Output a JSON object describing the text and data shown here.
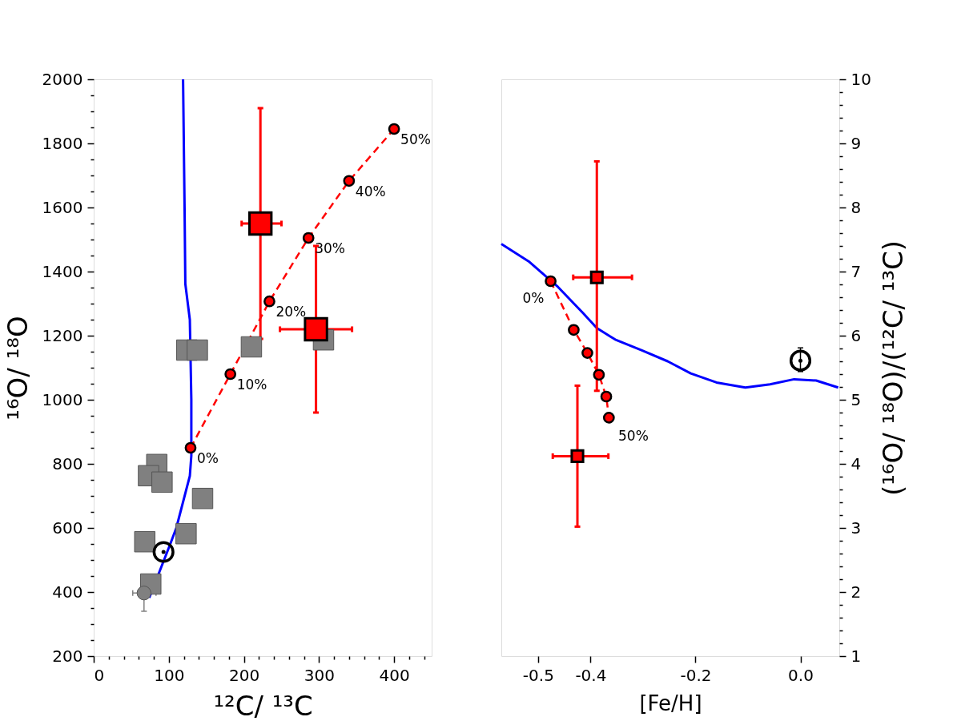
{
  "chart_data": [
    {
      "type": "scatter",
      "xlabel": "¹²C/ ¹³C",
      "ylabel": "¹⁶O/ ¹⁸O",
      "xlim": [
        0,
        450
      ],
      "ylim": [
        200,
        2000
      ],
      "grid": false,
      "xticks": [
        0,
        {
          "value": 20,
          "label": null
        },
        {
          "value": 40,
          "label": null
        },
        {
          "value": 60,
          "label": null
        },
        {
          "value": 80,
          "label": null
        },
        100,
        {
          "value": 120,
          "label": null
        },
        {
          "value": 140,
          "label": null
        },
        {
          "value": 160,
          "label": null
        },
        {
          "value": 180,
          "label": null
        },
        200,
        {
          "value": 220,
          "label": null
        },
        {
          "value": 240,
          "label": null
        },
        {
          "value": 260,
          "label": null
        },
        {
          "value": 280,
          "label": null
        },
        300,
        {
          "value": 320,
          "label": null
        },
        {
          "value": 340,
          "label": null
        },
        {
          "value": 360,
          "label": null
        },
        {
          "value": 380,
          "label": null
        },
        400,
        {
          "value": 420,
          "label": null
        },
        {
          "value": 440,
          "label": null
        }
      ],
      "yticks": [
        200,
        {
          "value": 250,
          "label": null
        },
        {
          "value": 300,
          "label": null
        },
        {
          "value": 350,
          "label": null
        },
        400,
        {
          "value": 450,
          "label": null
        },
        {
          "value": 500,
          "label": null
        },
        {
          "value": 550,
          "label": null
        },
        600,
        {
          "value": 650,
          "label": null
        },
        {
          "value": 700,
          "label": null
        },
        {
          "value": 750,
          "label": null
        },
        800,
        {
          "value": 850,
          "label": null
        },
        {
          "value": 900,
          "label": null
        },
        {
          "value": 950,
          "label": null
        },
        1000,
        {
          "value": 1050,
          "label": null
        },
        {
          "value": 1100,
          "label": null
        },
        {
          "value": 1150,
          "label": null
        },
        1200,
        {
          "value": 1250,
          "label": null
        },
        {
          "value": 1300,
          "label": null
        },
        {
          "value": 1350,
          "label": null
        },
        1400,
        {
          "value": 1450,
          "label": null
        },
        {
          "value": 1500,
          "label": null
        },
        {
          "value": 1550,
          "label": null
        },
        1600,
        {
          "value": 1650,
          "label": null
        },
        {
          "value": 1700,
          "label": null
        },
        {
          "value": 1750,
          "label": null
        },
        1800,
        {
          "value": 1850,
          "label": null
        },
        {
          "value": 1900,
          "label": null
        },
        {
          "value": 1950,
          "label": null
        },
        2000
      ],
      "series": [
        {
          "type": "line",
          "color": "#0000ff",
          "line_style": "solid",
          "marker": "none",
          "x": [
            74,
            102,
            110,
            128,
            130,
            130,
            128,
            122,
            121,
            119
          ],
          "values": [
            382,
            550,
            600,
            762,
            825,
            1000,
            1250,
            1362,
            1600,
            2000
          ]
        },
        {
          "color": "#808080",
          "marker": "square",
          "x": [
            124,
            138,
            210,
            306,
            84,
            73,
            91,
            145,
            68,
            123,
            76
          ],
          "values": [
            1155,
            1155,
            1165,
            1187,
            798,
            763,
            743,
            692,
            557,
            582,
            425
          ]
        },
        {
          "color": "#808080",
          "marker": "circle",
          "x": [
            67
          ],
          "values": [
            397
          ],
          "errors": [
            [
              340,
              450
            ]
          ],
          "xerrors": [
            [
              52,
              83
            ]
          ]
        },
        {
          "type": "line",
          "color": "#ff0000",
          "line_style": "dashed",
          "marker": "circle",
          "x": [
            129,
            182,
            234,
            286,
            340,
            400
          ],
          "values": [
            850,
            1080,
            1307,
            1505,
            1683,
            1845
          ]
        },
        {
          "color": "#ff0000",
          "marker": "square",
          "x": [
            222,
            296
          ],
          "values": [
            1550,
            1220
          ],
          "errors": [
            [
              1190,
              1910
            ],
            [
              960,
              1480
            ]
          ],
          "xerrors": [
            [
              197,
              250
            ],
            [
              248,
              344
            ]
          ]
        },
        {
          "color": "#000000",
          "marker": "circle",
          "x": [
            93
          ],
          "values": [
            525
          ]
        }
      ],
      "annotations": [
        {
          "text": "0%",
          "x": 129,
          "y": 850
        },
        {
          "text": "10%",
          "x": 182,
          "y": 1080
        },
        {
          "text": "20%",
          "x": 234,
          "y": 1307
        },
        {
          "text": "30%",
          "x": 286,
          "y": 1505
        },
        {
          "text": "40%",
          "x": 340,
          "y": 1683
        },
        {
          "text": "50%",
          "x": 400,
          "y": 1845
        }
      ]
    },
    {
      "type": "scatter",
      "xlabel": "[Fe/H]",
      "y2label": "(¹⁶O/ ¹⁸O)/(¹²C/ ¹³C)",
      "xlim": [
        -0.57,
        0.074
      ],
      "y2lim": [
        1,
        10
      ],
      "grid": false,
      "xticks": [
        -0.5,
        -0.4,
        -0.2,
        {
          "value": 0,
          "label": "0.0"
        }
      ],
      "y2ticks": [
        1,
        {
          "value": 1.2,
          "label": null
        },
        {
          "value": 1.4,
          "label": null
        },
        {
          "value": 1.6,
          "label": null
        },
        {
          "value": 1.8,
          "label": null
        },
        2,
        {
          "value": 2.2,
          "label": null
        },
        {
          "value": 2.4,
          "label": null
        },
        {
          "value": 2.6,
          "label": null
        },
        {
          "value": 2.8,
          "label": null
        },
        3,
        {
          "value": 3.2,
          "label": null
        },
        {
          "value": 3.4,
          "label": null
        },
        {
          "value": 3.6,
          "label": null
        },
        {
          "value": 3.8,
          "label": null
        },
        4,
        {
          "value": 4.2,
          "label": null
        },
        {
          "value": 4.4,
          "label": null
        },
        {
          "value": 4.6,
          "label": null
        },
        {
          "value": 4.8,
          "label": null
        },
        5,
        {
          "value": 5.2,
          "label": null
        },
        {
          "value": 5.4,
          "label": null
        },
        {
          "value": 5.6,
          "label": null
        },
        {
          "value": 5.8,
          "label": null
        },
        6,
        {
          "value": 6.2,
          "label": null
        },
        {
          "value": 6.4,
          "label": null
        },
        {
          "value": 6.6,
          "label": null
        },
        {
          "value": 6.8,
          "label": null
        },
        7,
        {
          "value": 7.2,
          "label": null
        },
        {
          "value": 7.4,
          "label": null
        },
        {
          "value": 7.6,
          "label": null
        },
        {
          "value": 7.8,
          "label": null
        },
        8,
        {
          "value": 8.2,
          "label": null
        },
        {
          "value": 8.4,
          "label": null
        },
        {
          "value": 8.6,
          "label": null
        },
        {
          "value": 8.8,
          "label": null
        },
        9,
        {
          "value": 9.2,
          "label": null
        },
        {
          "value": 9.4,
          "label": null
        },
        {
          "value": 9.6,
          "label": null
        },
        {
          "value": 9.8,
          "label": null
        },
        10
      ],
      "series": [
        {
          "type": "line",
          "axis": "y2",
          "color": "#0000ff",
          "line_style": "solid",
          "marker": "none",
          "x": [
            -0.57,
            -0.518,
            -0.476,
            -0.462,
            -0.414,
            -0.388,
            -0.353,
            -0.302,
            -0.253,
            -0.209,
            -0.16,
            -0.105,
            -0.058,
            -0.012,
            0.03,
            0.072
          ],
          "values": [
            7.43,
            7.16,
            6.86,
            6.76,
            6.35,
            6.12,
            5.94,
            5.77,
            5.6,
            5.41,
            5.27,
            5.19,
            5.24,
            5.32,
            5.3,
            5.19
          ]
        },
        {
          "type": "line",
          "axis": "y2",
          "color": "#ff0000",
          "line_style": "dashed",
          "marker": "circle",
          "x": [
            -0.476,
            -0.432,
            -0.406,
            -0.384,
            -0.37,
            -0.365
          ],
          "values": [
            6.85,
            6.09,
            5.73,
            5.39,
            5.05,
            4.72
          ]
        },
        {
          "axis": "y2",
          "color": "#ff0000",
          "marker": "square",
          "x": [
            -0.388,
            -0.425
          ],
          "values": [
            6.91,
            4.12
          ],
          "errors": [
            [
              5.14,
              8.72
            ],
            [
              3.02,
              5.22
            ]
          ],
          "xerrors": [
            [
              -0.433,
              -0.321
            ],
            [
              -0.472,
              -0.366
            ]
          ]
        },
        {
          "axis": "y2",
          "color": "#000000",
          "marker": "circle",
          "x": [
            0.0
          ],
          "values": [
            5.61
          ],
          "errors": [
            [
              5.44,
              5.81
            ]
          ]
        }
      ],
      "annotations": [
        "0%",
        "50%"
      ]
    }
  ]
}
